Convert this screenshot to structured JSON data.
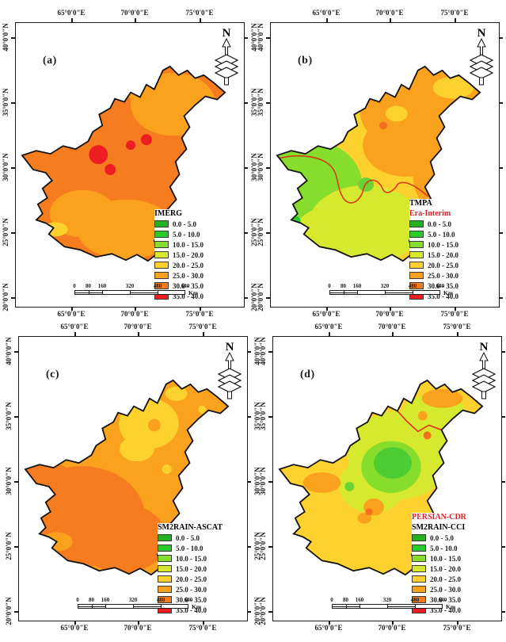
{
  "figure": {
    "type": "choropleth-map-grid",
    "region": "Pakistan",
    "lon_labels": [
      "65°0'0\"E",
      "70°0'0\"E",
      "75°0'0\"E"
    ],
    "lat_labels": [
      "40°0'0\"N",
      "35°0'0\"N",
      "30°0'0\"N",
      "25°0'0\"N",
      "20°0'0\"N"
    ],
    "north_label": "N",
    "scalebar": {
      "ticks": [
        "0",
        "80",
        "160",
        "320",
        "480",
        "640"
      ],
      "unit": "Km"
    },
    "legend_classes": [
      {
        "label": "0.0 - 5.0",
        "color": "#23B123"
      },
      {
        "label": "5.0 - 10.0",
        "color": "#2BCB2F"
      },
      {
        "label": "10.0 - 15.0",
        "color": "#86DD2B"
      },
      {
        "label": "15.0 - 20.0",
        "color": "#D6E92F"
      },
      {
        "label": "20.0 - 25.0",
        "color": "#FDD22E"
      },
      {
        "label": "25.0 - 30.0",
        "color": "#FAA21D"
      },
      {
        "label": "30.0 - 35.0",
        "color": "#F57D20"
      },
      {
        "label": "35.0 - 40.0",
        "color": "#EE1C23"
      }
    ],
    "panels": [
      {
        "letter": "(a)",
        "legend_titles": [
          {
            "text": "IMERG",
            "color": "#000000"
          }
        ],
        "dominant_value_ranges": [
          "30.0 - 35.0",
          "25.0 - 30.0",
          "35.0 - 40.0"
        ]
      },
      {
        "letter": "(b)",
        "legend_titles": [
          {
            "text": "TMPA",
            "color": "#000000"
          },
          {
            "text": "Era-Interim",
            "color": "#D8232A"
          }
        ],
        "dominant_value_ranges": [
          "25.0 - 30.0",
          "20.0 - 25.0",
          "15.0 - 20.0",
          "10.0 - 15.0"
        ]
      },
      {
        "letter": "(c)",
        "legend_titles": [
          {
            "text": "SM2RAIN-ASCAT",
            "color": "#000000"
          }
        ],
        "dominant_value_ranges": [
          "25.0 - 30.0",
          "30.0 - 35.0",
          "20.0 - 25.0"
        ]
      },
      {
        "letter": "(d)",
        "legend_titles": [
          {
            "text": "PERSIAN-CDR",
            "color": "#D8232A"
          },
          {
            "text": "SM2RAIN-CCI",
            "color": "#000000"
          }
        ],
        "dominant_value_ranges": [
          "20.0 - 25.0",
          "15.0 - 20.0",
          "10.0 - 15.0",
          "25.0 - 30.0"
        ]
      }
    ]
  }
}
